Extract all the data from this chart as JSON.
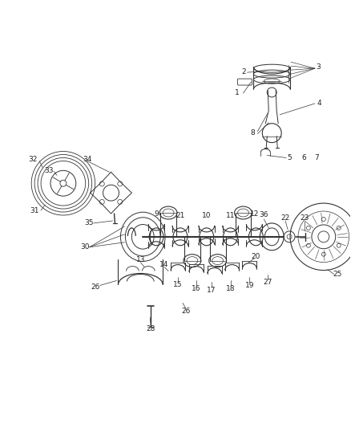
{
  "bg_color": "#ffffff",
  "lc": "#333333",
  "figsize": [
    4.38,
    5.33
  ],
  "dpi": 100
}
